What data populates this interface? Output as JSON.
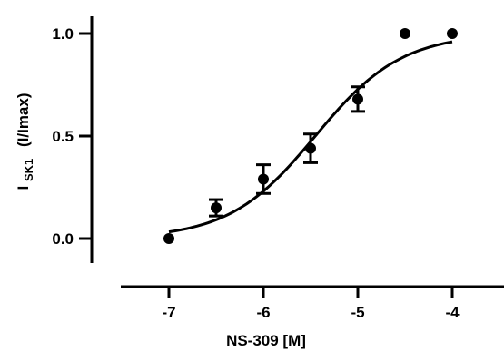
{
  "chart_data": {
    "type": "scatter",
    "title": "",
    "xlabel": "NS-309 [M]",
    "ylabel": {
      "main": "I",
      "subscript": "SK1",
      "suffix": "(I/Imax)"
    },
    "xlim": [
      -7.3,
      -3.8
    ],
    "ylim": [
      -0.1,
      1.1
    ],
    "x_ticks": [
      -7,
      -6,
      -5,
      -4
    ],
    "x_tick_labels": [
      "-7",
      "-6",
      "-5",
      "-4"
    ],
    "y_ticks": [
      0.0,
      0.5,
      1.0
    ],
    "y_tick_labels": [
      "0.0",
      "0.5",
      "1.0"
    ],
    "grid": false,
    "series": [
      {
        "x": [
          -7.0,
          -6.5,
          -6.0,
          -5.5,
          -5.0,
          -4.5,
          -4.0
        ],
        "y": [
          0.0,
          0.15,
          0.29,
          0.44,
          0.68,
          1.0,
          1.0
        ],
        "yerr": [
          0.0,
          0.04,
          0.07,
          0.07,
          0.06,
          0.0,
          0.0
        ]
      }
    ],
    "fit": {
      "type": "sigmoid",
      "bottom": 0.0,
      "top": 1.0,
      "log_ec50": -5.45,
      "hill_slope": 0.95,
      "x_range": [
        -7.0,
        -4.0
      ]
    }
  }
}
